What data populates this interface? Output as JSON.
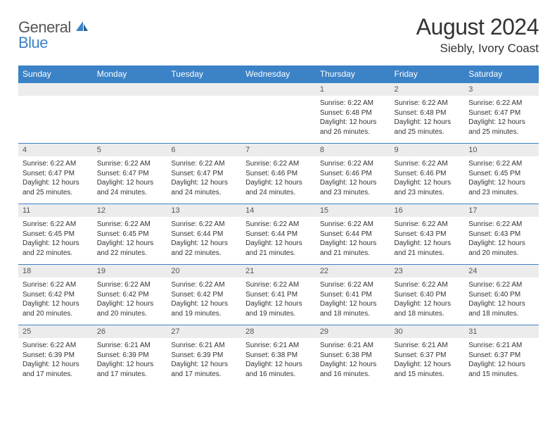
{
  "logo": {
    "text_general": "General",
    "text_blue": "Blue",
    "icon_color": "#3b82c7"
  },
  "title": "August 2024",
  "location": "Siebly, Ivory Coast",
  "colors": {
    "header_bg": "#3b82c7",
    "header_text": "#ffffff",
    "daynum_bg": "#ececec",
    "cell_border": "#3b82c7",
    "body_text": "#333333"
  },
  "day_headers": [
    "Sunday",
    "Monday",
    "Tuesday",
    "Wednesday",
    "Thursday",
    "Friday",
    "Saturday"
  ],
  "weeks": [
    [
      {
        "n": "",
        "sunrise": "",
        "sunset": "",
        "daylight": ""
      },
      {
        "n": "",
        "sunrise": "",
        "sunset": "",
        "daylight": ""
      },
      {
        "n": "",
        "sunrise": "",
        "sunset": "",
        "daylight": ""
      },
      {
        "n": "",
        "sunrise": "",
        "sunset": "",
        "daylight": ""
      },
      {
        "n": "1",
        "sunrise": "Sunrise: 6:22 AM",
        "sunset": "Sunset: 6:48 PM",
        "daylight": "Daylight: 12 hours and 26 minutes."
      },
      {
        "n": "2",
        "sunrise": "Sunrise: 6:22 AM",
        "sunset": "Sunset: 6:48 PM",
        "daylight": "Daylight: 12 hours and 25 minutes."
      },
      {
        "n": "3",
        "sunrise": "Sunrise: 6:22 AM",
        "sunset": "Sunset: 6:47 PM",
        "daylight": "Daylight: 12 hours and 25 minutes."
      }
    ],
    [
      {
        "n": "4",
        "sunrise": "Sunrise: 6:22 AM",
        "sunset": "Sunset: 6:47 PM",
        "daylight": "Daylight: 12 hours and 25 minutes."
      },
      {
        "n": "5",
        "sunrise": "Sunrise: 6:22 AM",
        "sunset": "Sunset: 6:47 PM",
        "daylight": "Daylight: 12 hours and 24 minutes."
      },
      {
        "n": "6",
        "sunrise": "Sunrise: 6:22 AM",
        "sunset": "Sunset: 6:47 PM",
        "daylight": "Daylight: 12 hours and 24 minutes."
      },
      {
        "n": "7",
        "sunrise": "Sunrise: 6:22 AM",
        "sunset": "Sunset: 6:46 PM",
        "daylight": "Daylight: 12 hours and 24 minutes."
      },
      {
        "n": "8",
        "sunrise": "Sunrise: 6:22 AM",
        "sunset": "Sunset: 6:46 PM",
        "daylight": "Daylight: 12 hours and 23 minutes."
      },
      {
        "n": "9",
        "sunrise": "Sunrise: 6:22 AM",
        "sunset": "Sunset: 6:46 PM",
        "daylight": "Daylight: 12 hours and 23 minutes."
      },
      {
        "n": "10",
        "sunrise": "Sunrise: 6:22 AM",
        "sunset": "Sunset: 6:45 PM",
        "daylight": "Daylight: 12 hours and 23 minutes."
      }
    ],
    [
      {
        "n": "11",
        "sunrise": "Sunrise: 6:22 AM",
        "sunset": "Sunset: 6:45 PM",
        "daylight": "Daylight: 12 hours and 22 minutes."
      },
      {
        "n": "12",
        "sunrise": "Sunrise: 6:22 AM",
        "sunset": "Sunset: 6:45 PM",
        "daylight": "Daylight: 12 hours and 22 minutes."
      },
      {
        "n": "13",
        "sunrise": "Sunrise: 6:22 AM",
        "sunset": "Sunset: 6:44 PM",
        "daylight": "Daylight: 12 hours and 22 minutes."
      },
      {
        "n": "14",
        "sunrise": "Sunrise: 6:22 AM",
        "sunset": "Sunset: 6:44 PM",
        "daylight": "Daylight: 12 hours and 21 minutes."
      },
      {
        "n": "15",
        "sunrise": "Sunrise: 6:22 AM",
        "sunset": "Sunset: 6:44 PM",
        "daylight": "Daylight: 12 hours and 21 minutes."
      },
      {
        "n": "16",
        "sunrise": "Sunrise: 6:22 AM",
        "sunset": "Sunset: 6:43 PM",
        "daylight": "Daylight: 12 hours and 21 minutes."
      },
      {
        "n": "17",
        "sunrise": "Sunrise: 6:22 AM",
        "sunset": "Sunset: 6:43 PM",
        "daylight": "Daylight: 12 hours and 20 minutes."
      }
    ],
    [
      {
        "n": "18",
        "sunrise": "Sunrise: 6:22 AM",
        "sunset": "Sunset: 6:42 PM",
        "daylight": "Daylight: 12 hours and 20 minutes."
      },
      {
        "n": "19",
        "sunrise": "Sunrise: 6:22 AM",
        "sunset": "Sunset: 6:42 PM",
        "daylight": "Daylight: 12 hours and 20 minutes."
      },
      {
        "n": "20",
        "sunrise": "Sunrise: 6:22 AM",
        "sunset": "Sunset: 6:42 PM",
        "daylight": "Daylight: 12 hours and 19 minutes."
      },
      {
        "n": "21",
        "sunrise": "Sunrise: 6:22 AM",
        "sunset": "Sunset: 6:41 PM",
        "daylight": "Daylight: 12 hours and 19 minutes."
      },
      {
        "n": "22",
        "sunrise": "Sunrise: 6:22 AM",
        "sunset": "Sunset: 6:41 PM",
        "daylight": "Daylight: 12 hours and 18 minutes."
      },
      {
        "n": "23",
        "sunrise": "Sunrise: 6:22 AM",
        "sunset": "Sunset: 6:40 PM",
        "daylight": "Daylight: 12 hours and 18 minutes."
      },
      {
        "n": "24",
        "sunrise": "Sunrise: 6:22 AM",
        "sunset": "Sunset: 6:40 PM",
        "daylight": "Daylight: 12 hours and 18 minutes."
      }
    ],
    [
      {
        "n": "25",
        "sunrise": "Sunrise: 6:22 AM",
        "sunset": "Sunset: 6:39 PM",
        "daylight": "Daylight: 12 hours and 17 minutes."
      },
      {
        "n": "26",
        "sunrise": "Sunrise: 6:21 AM",
        "sunset": "Sunset: 6:39 PM",
        "daylight": "Daylight: 12 hours and 17 minutes."
      },
      {
        "n": "27",
        "sunrise": "Sunrise: 6:21 AM",
        "sunset": "Sunset: 6:39 PM",
        "daylight": "Daylight: 12 hours and 17 minutes."
      },
      {
        "n": "28",
        "sunrise": "Sunrise: 6:21 AM",
        "sunset": "Sunset: 6:38 PM",
        "daylight": "Daylight: 12 hours and 16 minutes."
      },
      {
        "n": "29",
        "sunrise": "Sunrise: 6:21 AM",
        "sunset": "Sunset: 6:38 PM",
        "daylight": "Daylight: 12 hours and 16 minutes."
      },
      {
        "n": "30",
        "sunrise": "Sunrise: 6:21 AM",
        "sunset": "Sunset: 6:37 PM",
        "daylight": "Daylight: 12 hours and 15 minutes."
      },
      {
        "n": "31",
        "sunrise": "Sunrise: 6:21 AM",
        "sunset": "Sunset: 6:37 PM",
        "daylight": "Daylight: 12 hours and 15 minutes."
      }
    ]
  ]
}
